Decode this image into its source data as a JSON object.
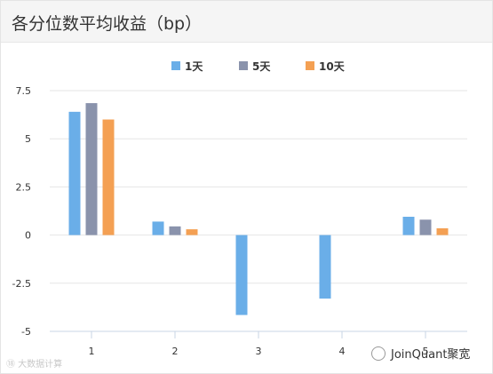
{
  "header": {
    "title": "各分位数平均收益（bp）"
  },
  "watermarks": {
    "left": "⑱ 大数据计算",
    "right": "JoinQuant聚宽"
  },
  "colors": {
    "1天": "#6aaee8",
    "5天": "#8a93ac",
    "10天": "#f4a053"
  },
  "chart_data": {
    "type": "bar",
    "title": "各分位数平均收益（bp）",
    "categories": [
      "1",
      "2",
      "3",
      "4",
      "5"
    ],
    "series": [
      {
        "name": "1天",
        "values": [
          6.4,
          0.7,
          -4.15,
          -3.3,
          0.95
        ]
      },
      {
        "name": "5天",
        "values": [
          6.85,
          0.45,
          0,
          0,
          0.8
        ]
      },
      {
        "name": "10天",
        "values": [
          6.0,
          0.3,
          0,
          0,
          0.35
        ]
      }
    ],
    "yticks": [
      "7.5",
      "5",
      "2.5",
      "0",
      "-2.5",
      "-5"
    ],
    "ylim": [
      -5,
      7.5
    ],
    "xlabel": "",
    "ylabel": "",
    "legend": "top-center",
    "grid": true
  }
}
